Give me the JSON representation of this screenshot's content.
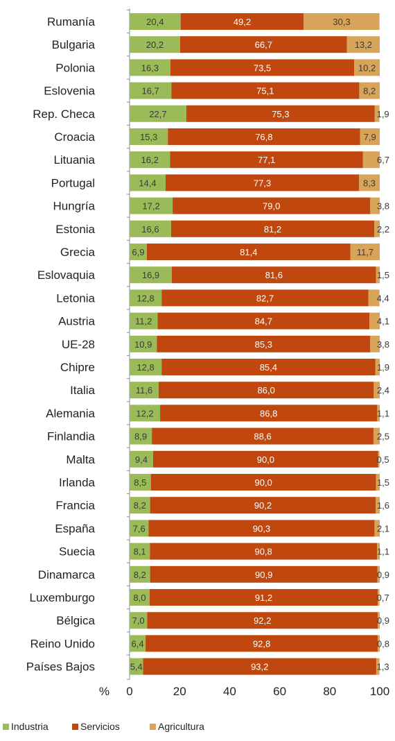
{
  "chart_data": {
    "type": "bar",
    "orientation": "horizontal",
    "stacked": true,
    "categories": [
      "Rumanía",
      "Bulgaria",
      "Polonia",
      "Eslovenia",
      "Rep. Checa",
      "Croacia",
      "Lituania",
      "Portugal",
      "Hungría",
      "Estonia",
      "Grecia",
      "Eslovaquia",
      "Letonia",
      "Austria",
      "UE-28",
      "Chipre",
      "Italia",
      "Alemania",
      "Finlandia",
      "Malta",
      "Irlanda",
      "Francia",
      "España",
      "Suecia",
      "Dinamarca",
      "Luxemburgo",
      "Bélgica",
      "Reino Unido",
      "Países Bajos"
    ],
    "series": [
      {
        "name": "Industria",
        "color": "#9bbb59",
        "values": [
          20.4,
          20.2,
          16.3,
          16.7,
          22.7,
          15.3,
          16.2,
          14.4,
          17.2,
          16.6,
          6.9,
          16.9,
          12.8,
          11.2,
          10.9,
          12.8,
          11.6,
          12.2,
          8.9,
          9.4,
          8.5,
          8.2,
          7.6,
          8.1,
          8.2,
          8.0,
          7.0,
          6.4,
          5.4
        ],
        "labels": [
          "20,4",
          "20,2",
          "16,3",
          "16,7",
          "22,7",
          "15,3",
          "16,2",
          "14,4",
          "17,2",
          "16,6",
          "6,9",
          "16,9",
          "12,8",
          "11,2",
          "10,9",
          "12,8",
          "11,6",
          "12,2",
          "8,9",
          "9,4",
          "8,5",
          "8,2",
          "7,6",
          "8,1",
          "8,2",
          "8,0",
          "7,0",
          "6,4",
          "5,4"
        ]
      },
      {
        "name": "Servicios",
        "color": "#c0480f",
        "values": [
          49.2,
          66.7,
          73.5,
          75.1,
          75.3,
          76.8,
          77.1,
          77.3,
          79.0,
          81.2,
          81.4,
          81.6,
          82.7,
          84.7,
          85.3,
          85.4,
          86.0,
          86.8,
          88.6,
          90.0,
          90.0,
          90.2,
          90.3,
          90.8,
          90.9,
          91.2,
          92.2,
          92.8,
          93.2
        ],
        "labels": [
          "49,2",
          "66,7",
          "73,5",
          "75,1",
          "75,3",
          "76,8",
          "77,1",
          "77,3",
          "79,0",
          "81,2",
          "81,4",
          "81,6",
          "82,7",
          "84,7",
          "85,3",
          "85,4",
          "86,0",
          "86,8",
          "88,6",
          "90,0",
          "90,0",
          "90,2",
          "90,3",
          "90,8",
          "90,9",
          "91,2",
          "92,2",
          "92,8",
          "93,2"
        ]
      },
      {
        "name": "Agricultura",
        "color": "#d8a45a",
        "values": [
          30.3,
          13.2,
          10.2,
          8.2,
          1.9,
          7.9,
          6.7,
          8.3,
          3.8,
          2.2,
          11.7,
          1.5,
          4.4,
          4.1,
          3.8,
          1.9,
          2.4,
          1.1,
          2.5,
          0.5,
          1.5,
          1.6,
          2.1,
          1.1,
          0.9,
          0.7,
          0.9,
          0.8,
          1.3
        ],
        "labels": [
          "30,3",
          "13,2",
          "10,2",
          "8,2",
          "1,9",
          "7,9",
          "6,7",
          "8,3",
          "3,8",
          "2,2",
          "11,7",
          "1,5",
          "4,4",
          "4,1",
          "3,8",
          "1,9",
          "2,4",
          "1,1",
          "2,5",
          "0,5",
          "1,5",
          "1,6",
          "2,1",
          "1,1",
          "0,9",
          "0,7",
          "0,9",
          "0,8",
          "1,3"
        ]
      }
    ],
    "x_axis": {
      "label": "%",
      "range": [
        0,
        100
      ],
      "ticks": [
        "0",
        "20",
        "40",
        "60",
        "80",
        "100"
      ]
    },
    "legend": {
      "position": "bottom-left",
      "entries": [
        "Industria",
        "Servicios",
        "Agricultura"
      ]
    },
    "grid": false
  }
}
